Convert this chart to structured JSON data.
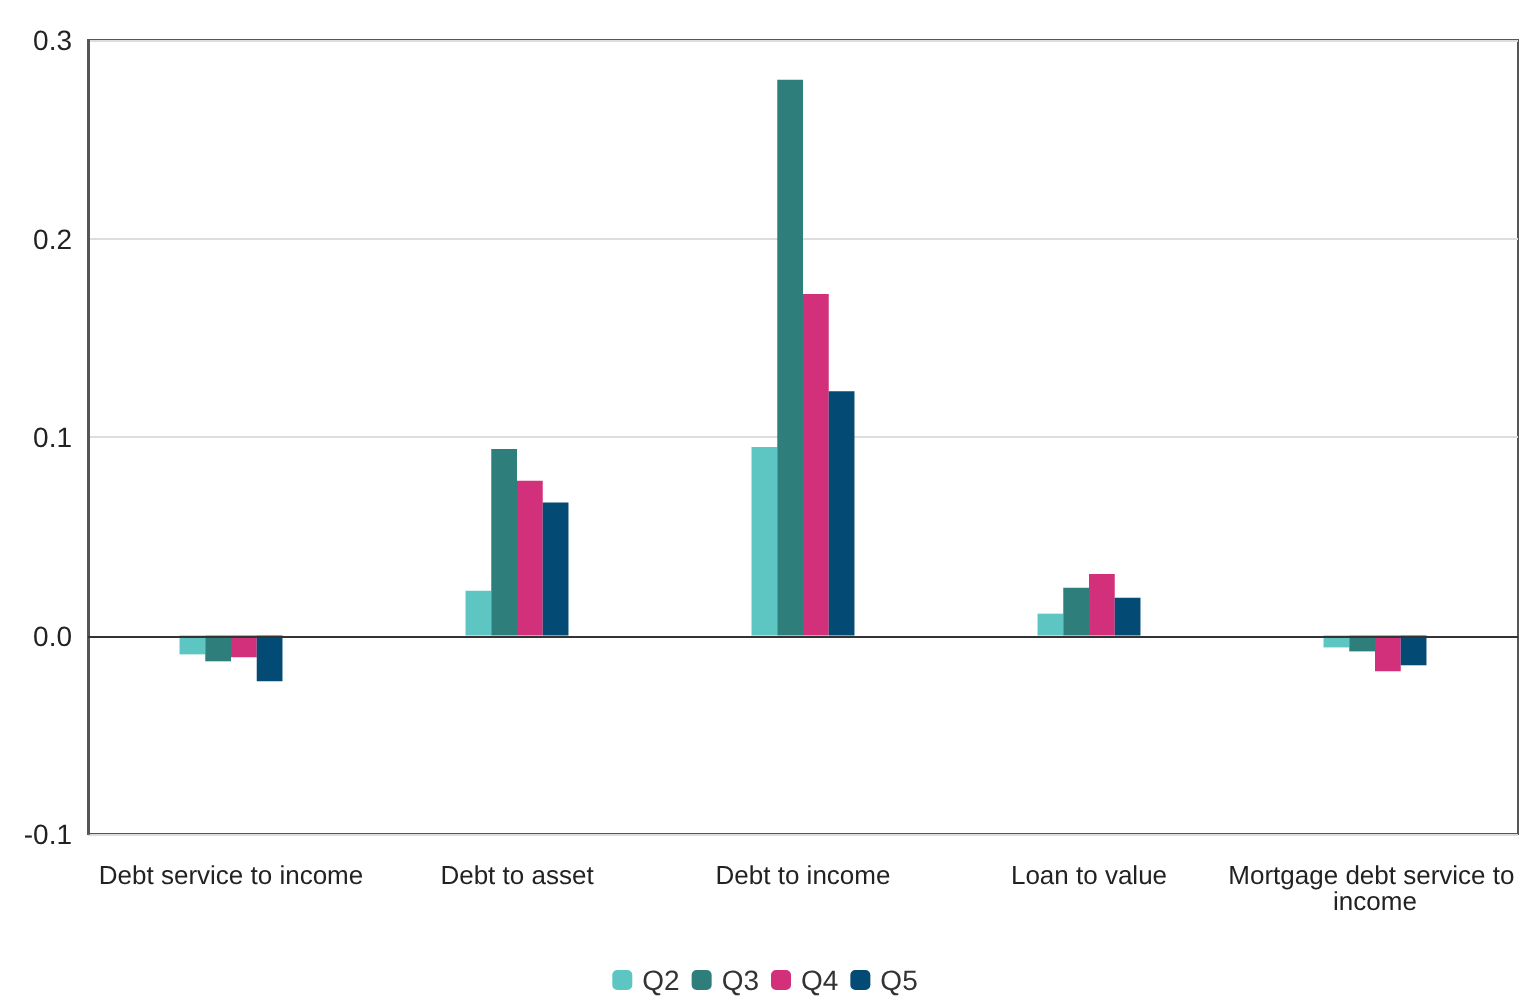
{
  "chart_data": {
    "type": "bar",
    "categories": [
      "Debt service to income",
      "Debt to asset",
      "Debt to income",
      "Loan to value",
      "Mortgage debt service to income"
    ],
    "series": [
      {
        "name": "Q2",
        "color": "#5ec6c2",
        "values": [
          -0.0095,
          0.0225,
          0.095,
          0.011,
          -0.006
        ]
      },
      {
        "name": "Q3",
        "color": "#2e7f7c",
        "values": [
          -0.013,
          0.094,
          0.28,
          0.024,
          -0.008
        ]
      },
      {
        "name": "Q4",
        "color": "#d2307a",
        "values": [
          -0.011,
          0.078,
          0.172,
          0.031,
          -0.018
        ]
      },
      {
        "name": "Q5",
        "color": "#034b74",
        "values": [
          -0.023,
          0.067,
          0.123,
          0.019,
          -0.015
        ]
      }
    ],
    "ylim": [
      -0.1,
      0.3
    ],
    "yticks": [
      {
        "value": -0.1,
        "label": "-0.1"
      },
      {
        "value": 0,
        "label": "0.0"
      },
      {
        "value": 0.1,
        "label": "0.1"
      },
      {
        "value": 0.2,
        "label": "0.2"
      },
      {
        "value": 0.3,
        "label": "0.3"
      }
    ],
    "grid": "y",
    "legend": "bottom"
  }
}
